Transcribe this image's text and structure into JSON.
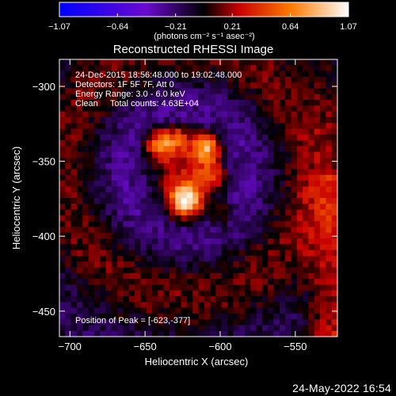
{
  "chart_data": {
    "type": "heatmap",
    "title": "Reconstructed RHESSI Image",
    "xlabel": "Heliocentric X (arcsec)",
    "ylabel": "Heliocentric Y (arcsec)",
    "xlim": [
      -707,
      -522
    ],
    "ylim": [
      -467,
      -282
    ],
    "x_ticks": [
      -700,
      -650,
      -600,
      -550
    ],
    "x_tick_labels": [
      "−700",
      "−650",
      "−600",
      "−550"
    ],
    "y_ticks": [
      -300,
      -350,
      -400,
      -450
    ],
    "y_tick_labels": [
      "−300",
      "−350",
      "−400",
      "−450"
    ],
    "colorbar": {
      "min": -1.07,
      "max": 1.07,
      "ticks": [
        -1.07,
        -0.64,
        -0.21,
        0.21,
        0.64,
        1.07
      ],
      "tick_labels": [
        "−1.07",
        "−0.64",
        "−0.21",
        "0.21",
        "0.64",
        "1.07"
      ],
      "units": "(photons cm⁻² s⁻¹ asec⁻²)",
      "colors": [
        "#0000ff",
        "#6a0ad0",
        "#000000",
        "#c80000",
        "#ff7a00",
        "#ffffff"
      ]
    },
    "annotations": [
      "24-Dec-2015 18:56:48.000 to 19:02:48.000",
      "Detectors: 1F 5F 7F, Att 0",
      "Energy Range: 3.0 - 6.0 keV",
      "Clean     Total counts: 4.63E+04"
    ],
    "peak_label": "Position of Peak = [-623,-377]",
    "peak": {
      "x": -623,
      "y": -377
    },
    "grid_cells": 48,
    "sources": [
      {
        "x": -623,
        "y": -377,
        "sigma": 8,
        "amplitude": 1.07
      },
      {
        "x": -609,
        "y": -341,
        "sigma": 7,
        "amplitude": 0.85
      },
      {
        "x": -640,
        "y": -339,
        "sigma": 7,
        "amplitude": 0.78
      },
      {
        "x": -628,
        "y": -334,
        "sigma": 6,
        "amplitude": 0.45
      },
      {
        "x": -605,
        "y": -360,
        "sigma": 6,
        "amplitude": 0.45
      },
      {
        "x": -600,
        "y": -385,
        "sigma": 6,
        "amplitude": 0.35
      }
    ]
  },
  "footer": {
    "date": "24-May-2022 16:54"
  }
}
